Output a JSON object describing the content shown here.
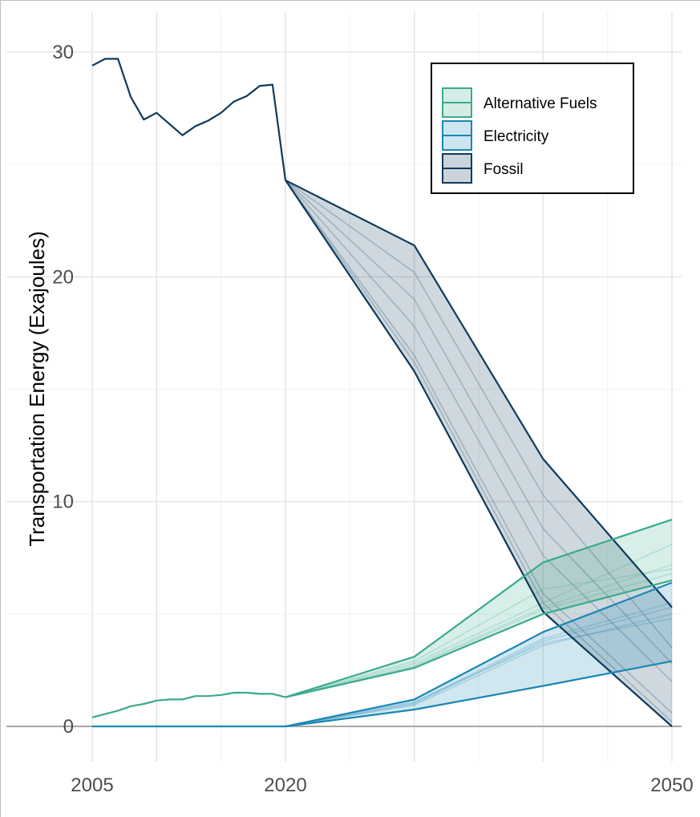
{
  "chart_data": {
    "type": "area",
    "title": "",
    "xlabel": "",
    "ylabel": "Transportation Energy (Exajoules)",
    "xlim": [
      2005,
      2050
    ],
    "ylim": [
      0,
      31
    ],
    "x_ticks": [
      2005,
      2020,
      2050
    ],
    "x_gridlines": [
      2005,
      2010,
      2015,
      2020,
      2025,
      2030,
      2035,
      2040,
      2045,
      2050
    ],
    "y_ticks": [
      0,
      10,
      20,
      30
    ],
    "grid": true,
    "legend": {
      "position": "top-right",
      "entries": [
        "Alternative Fuels",
        "Electricity",
        "Fossil"
      ]
    },
    "colors": {
      "Alternative Fuels": "#3aaa8e",
      "Electricity": "#1b87b5",
      "Fossil": "#0f3a5c"
    },
    "history": [
      {
        "name": "Fossil",
        "x": [
          2005,
          2006,
          2007,
          2008,
          2009,
          2010,
          2011,
          2012,
          2013,
          2014,
          2015,
          2016,
          2017,
          2018,
          2019,
          2020
        ],
        "y": [
          29.4,
          29.7,
          29.7,
          28.0,
          27.0,
          27.3,
          26.8,
          26.3,
          26.7,
          26.95,
          27.3,
          27.8,
          28.05,
          28.5,
          28.55,
          24.3
        ]
      },
      {
        "name": "Alternative Fuels",
        "x": [
          2005,
          2006,
          2007,
          2008,
          2009,
          2010,
          2011,
          2012,
          2013,
          2014,
          2015,
          2016,
          2017,
          2018,
          2019,
          2020
        ],
        "y": [
          0.4,
          0.55,
          0.7,
          0.9,
          1.0,
          1.15,
          1.2,
          1.2,
          1.35,
          1.35,
          1.4,
          1.5,
          1.5,
          1.45,
          1.45,
          1.3
        ]
      },
      {
        "name": "Electricity",
        "x": [
          2005,
          2020
        ],
        "y": [
          0.0,
          0.0
        ]
      }
    ],
    "projection_x": [
      2020,
      2030,
      2040,
      2050
    ],
    "projections": [
      {
        "name": "Fossil",
        "lower": [
          24.3,
          15.8,
          5.1,
          0.0
        ],
        "upper": [
          24.3,
          21.4,
          11.9,
          5.3
        ],
        "scenarios": [
          [
            24.3,
            20.2,
            10.3,
            3.5
          ],
          [
            24.3,
            17.8,
            7.6,
            2.0
          ],
          [
            24.3,
            16.5,
            5.9,
            0.6
          ],
          [
            24.3,
            16.2,
            5.5,
            0.2
          ],
          [
            24.3,
            19.0,
            8.8,
            2.8
          ]
        ]
      },
      {
        "name": "Alternative Fuels",
        "lower": [
          1.3,
          2.6,
          5.0,
          6.5
        ],
        "upper": [
          1.3,
          3.1,
          7.3,
          9.2
        ],
        "scenarios": [
          [
            1.3,
            2.8,
            5.5,
            8.1
          ],
          [
            1.3,
            2.7,
            5.3,
            7.2
          ],
          [
            1.3,
            2.9,
            6.1,
            7.0
          ],
          [
            1.3,
            2.65,
            5.2,
            6.8
          ]
        ]
      },
      {
        "name": "Electricity",
        "lower": [
          0.0,
          0.75,
          1.8,
          2.9
        ],
        "upper": [
          0.0,
          1.2,
          4.2,
          6.4
        ],
        "scenarios": [
          [
            0.0,
            1.0,
            3.8,
            5.3
          ],
          [
            0.0,
            0.95,
            3.6,
            5.0
          ],
          [
            0.0,
            1.05,
            3.9,
            5.5
          ],
          [
            0.0,
            1.1,
            3.7,
            4.8
          ]
        ]
      }
    ]
  }
}
